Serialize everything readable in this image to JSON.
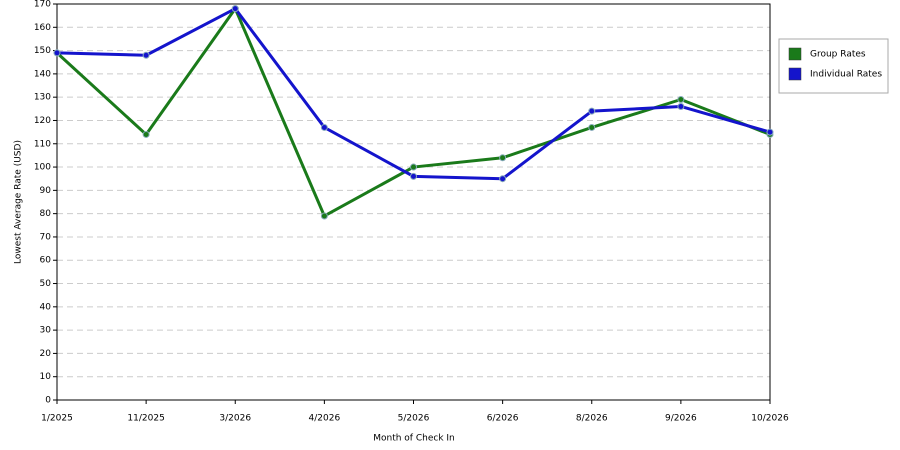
{
  "chart_data": {
    "type": "line",
    "x_label": "Month of Check In",
    "y_label": "Lowest Average Rate (USD)",
    "categories": [
      "1/2025",
      "11/2025",
      "3/2026",
      "4/2026",
      "5/2026",
      "6/2026",
      "8/2026",
      "9/2026",
      "10/2026"
    ],
    "series": [
      {
        "name": "Group Rates",
        "color": "#1a7a1a",
        "values": [
          149,
          114,
          168,
          79,
          100,
          104,
          117,
          129,
          114
        ]
      },
      {
        "name": "Individual Rates",
        "color": "#1414cc",
        "values": [
          149,
          148,
          168,
          117,
          96,
          95,
          124,
          126,
          115
        ]
      }
    ],
    "ylim": [
      0,
      170
    ],
    "yticks": [
      0,
      10,
      20,
      30,
      40,
      50,
      60,
      70,
      80,
      90,
      100,
      110,
      120,
      130,
      140,
      150,
      160,
      170
    ],
    "grid": true,
    "legend": "right"
  }
}
